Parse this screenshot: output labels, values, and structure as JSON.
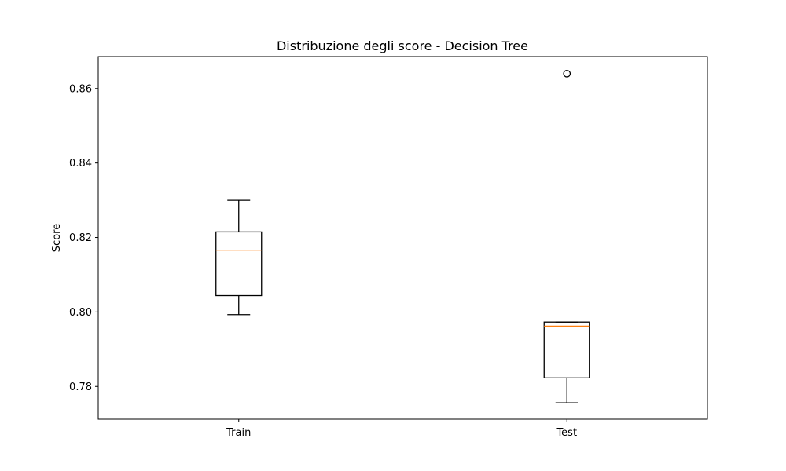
{
  "chart_data": {
    "type": "box",
    "title": "Distribuzione degli score - Decision Tree",
    "xlabel": "",
    "ylabel": "Score",
    "ylim": [
      0.7712,
      0.8686
    ],
    "yticks": [
      0.78,
      0.8,
      0.82,
      0.84,
      0.86
    ],
    "ytick_labels": [
      "0.78",
      "0.80",
      "0.82",
      "0.84",
      "0.86"
    ],
    "grid": false,
    "categories": [
      "Train",
      "Test"
    ],
    "boxes": [
      {
        "name": "Train",
        "whisker_low": 0.7993,
        "q1": 0.8044,
        "median": 0.8166,
        "q3": 0.8215,
        "whisker_high": 0.83,
        "outliers": []
      },
      {
        "name": "Test",
        "whisker_low": 0.7756,
        "q1": 0.7823,
        "median": 0.7962,
        "q3": 0.7973,
        "whisker_high": 0.7973,
        "outliers": [
          0.864
        ]
      }
    ],
    "colors": {
      "box": "#000000",
      "median": "#ff7f0e",
      "outlier": "#000000"
    }
  }
}
